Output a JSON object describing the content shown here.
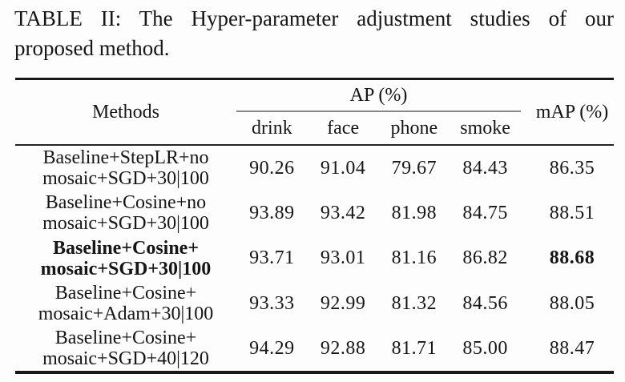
{
  "caption": {
    "line1": "TABLE II: The Hyper-parameter adjustment studies of our",
    "line2": "proposed method."
  },
  "table": {
    "header": {
      "methods": "Methods",
      "ap_group": "AP (%)",
      "map": "mAP (%)",
      "sub_columns": [
        "drink",
        "face",
        "phone",
        "smoke"
      ]
    },
    "rows": [
      {
        "method": [
          "Baseline+StepLR+no",
          "mosaic+SGD+30|100"
        ],
        "values": [
          "90.26",
          "91.04",
          "79.67",
          "84.43",
          "86.35"
        ],
        "bold": false
      },
      {
        "method": [
          "Baseline+Cosine+no",
          "mosaic+SGD+30|100"
        ],
        "values": [
          "93.89",
          "93.42",
          "81.98",
          "84.75",
          "88.51"
        ],
        "bold": false
      },
      {
        "method": [
          "Baseline+Cosine+",
          "mosaic+SGD+30|100"
        ],
        "values": [
          "93.71",
          "93.01",
          "81.16",
          "86.82",
          "88.68"
        ],
        "bold": true
      },
      {
        "method": [
          "Baseline+Cosine+",
          "mosaic+Adam+30|100"
        ],
        "values": [
          "93.33",
          "92.99",
          "81.32",
          "84.56",
          "88.05"
        ],
        "bold": false
      },
      {
        "method": [
          "Baseline+Cosine+",
          "mosaic+SGD+40|120"
        ],
        "values": [
          "94.29",
          "92.88",
          "81.71",
          "85.00",
          "88.47"
        ],
        "bold": false
      }
    ]
  },
  "colors": {
    "text": "#161616",
    "rule_heavy": "#181818",
    "rule_mid": "#242424",
    "rule_light": "#868686",
    "background": "#fdfdfd"
  }
}
